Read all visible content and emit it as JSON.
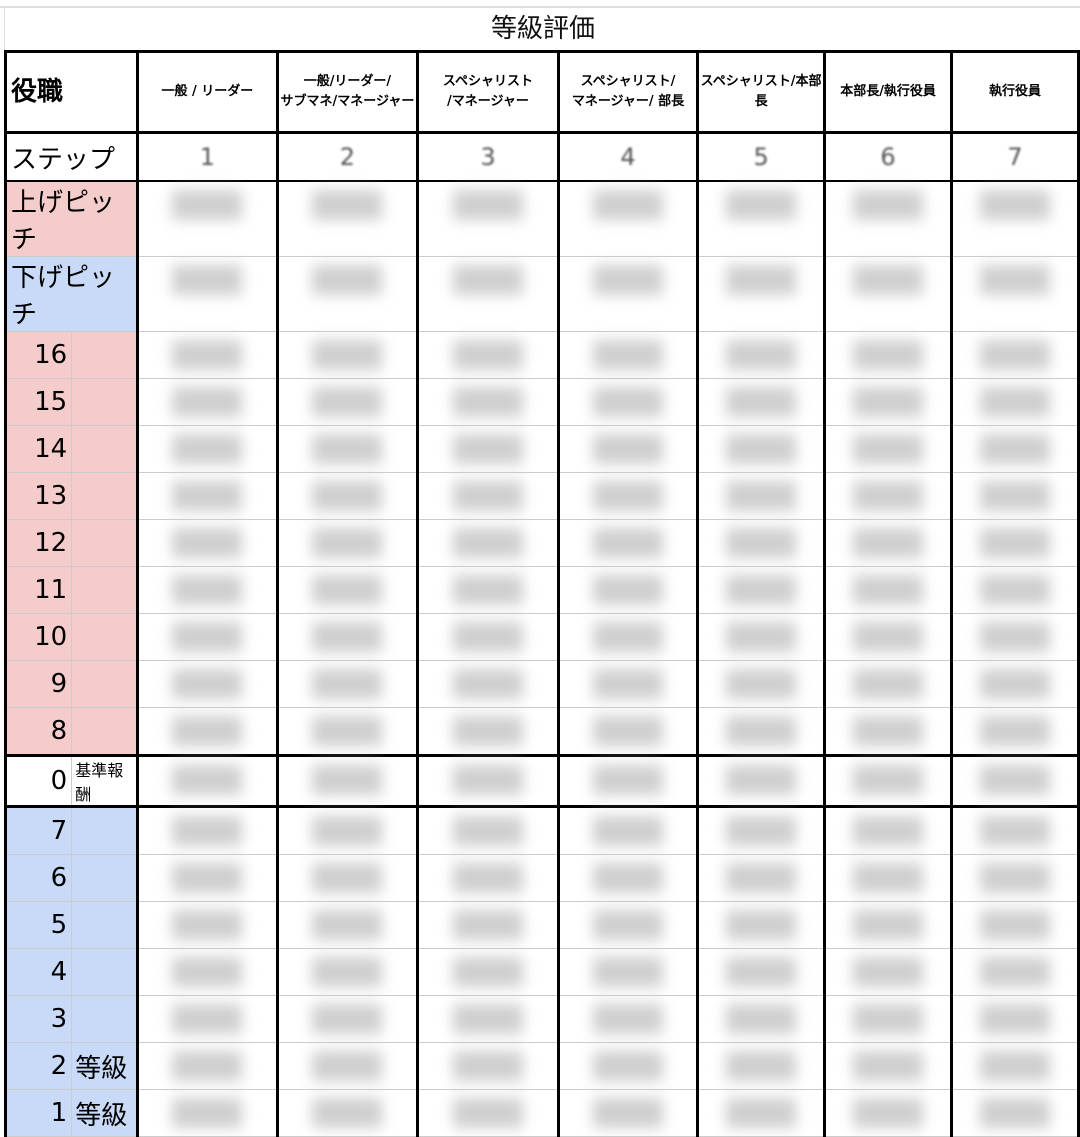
{
  "title": "等級評価",
  "header": {
    "role_label": "役職",
    "columns": [
      "一般 / リーダー",
      "一般/リーダー/\nサブマネ/マネージャー",
      "スペシャリスト\n/マネージャー",
      "スペシャリスト/\nマネージャー/ 部長",
      "スペシャリスト/本部長",
      "本部長/執行役員",
      "執行役員"
    ]
  },
  "step": {
    "label": "ステップ",
    "values": [
      "1",
      "2",
      "3",
      "4",
      "5",
      "6",
      "7"
    ]
  },
  "pitch_up": {
    "label": "上げピッチ"
  },
  "pitch_down": {
    "label": "下げピッチ"
  },
  "rows": [
    {
      "num": "16",
      "note": "",
      "tone": "pink"
    },
    {
      "num": "15",
      "note": "",
      "tone": "pink"
    },
    {
      "num": "14",
      "note": "",
      "tone": "pink"
    },
    {
      "num": "13",
      "note": "",
      "tone": "pink"
    },
    {
      "num": "12",
      "note": "",
      "tone": "pink"
    },
    {
      "num": "11",
      "note": "",
      "tone": "pink"
    },
    {
      "num": "10",
      "note": "",
      "tone": "pink"
    },
    {
      "num": "9",
      "note": "",
      "tone": "pink"
    },
    {
      "num": "8",
      "note": "",
      "tone": "pink"
    },
    {
      "num": "0",
      "note": "基準報酬",
      "tone": "base"
    },
    {
      "num": "7",
      "note": "",
      "tone": "blue"
    },
    {
      "num": "6",
      "note": "",
      "tone": "blue"
    },
    {
      "num": "5",
      "note": "",
      "tone": "blue"
    },
    {
      "num": "4",
      "note": "",
      "tone": "blue"
    },
    {
      "num": "3",
      "note": "",
      "tone": "blue"
    },
    {
      "num": "2",
      "note": "等級",
      "tone": "blue"
    },
    {
      "num": "1",
      "note": "等級",
      "tone": "blue"
    }
  ],
  "colors": {
    "up": "#f4cccc",
    "down": "#c9daf8"
  }
}
